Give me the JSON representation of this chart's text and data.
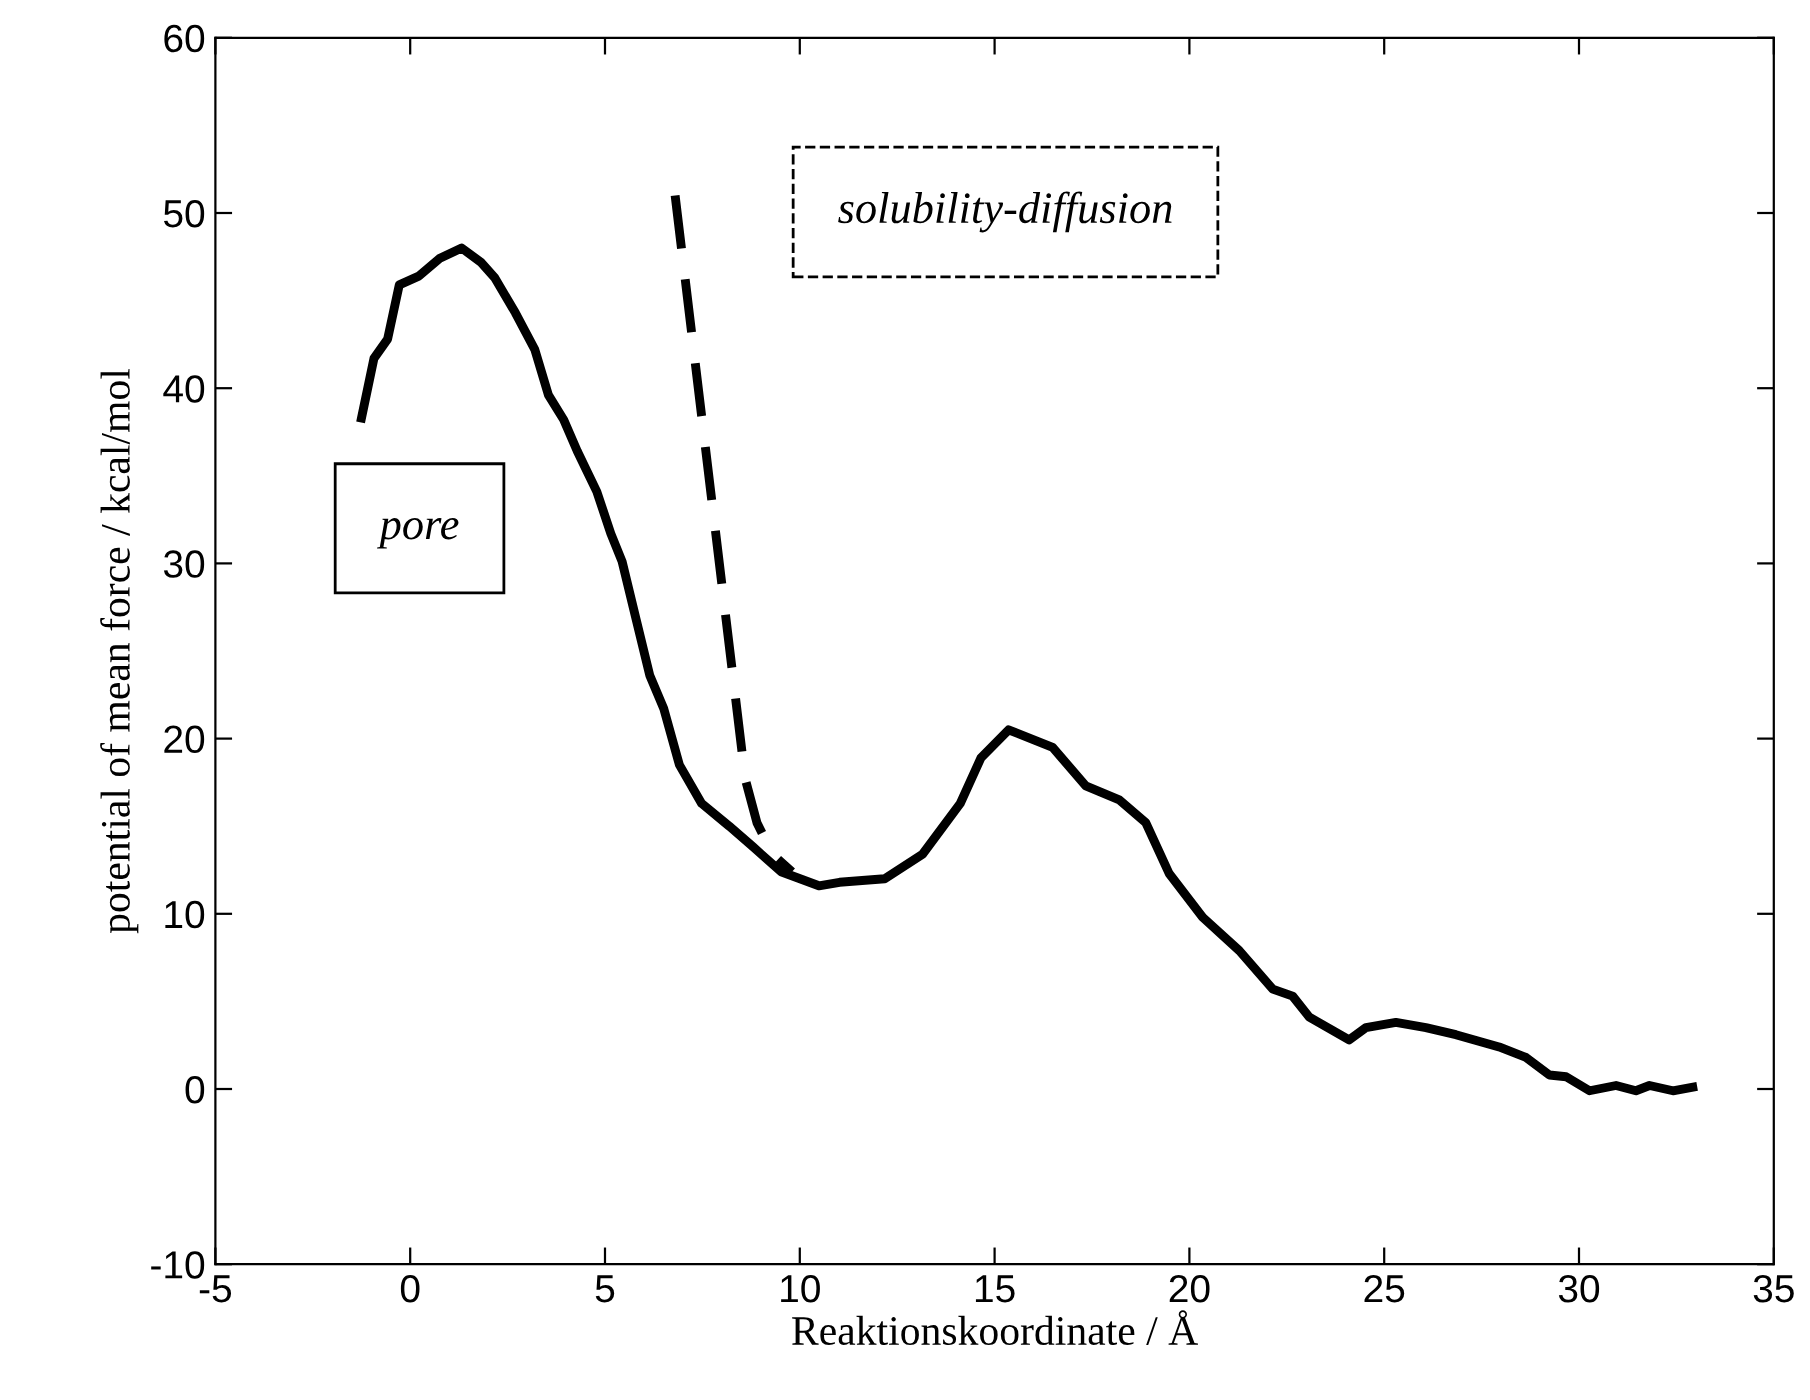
{
  "chart_data": {
    "type": "line",
    "xlabel": "Reaktionskoordinate / Å",
    "ylabel": "potential of mean force / kcal/mol",
    "xlim": [
      -5,
      35
    ],
    "xticks": [
      -5,
      0,
      5,
      10,
      15,
      20,
      25,
      30,
      35
    ],
    "ylim": [
      -10,
      60
    ],
    "yticks": [
      -10,
      0,
      10,
      20,
      30,
      40,
      50,
      60
    ],
    "grid": false,
    "legend": false,
    "annotations": [
      "pore",
      "solubility-diffusion"
    ],
    "series": [
      {
        "color": "#000000",
        "line_style": "solid",
        "x": [
          -1.25,
          -0.93,
          -0.58,
          -0.28,
          0.22,
          0.75,
          1.32,
          1.81,
          2.17,
          2.7,
          3.2,
          3.55,
          3.94,
          4.29,
          4.79,
          5.15,
          5.44,
          5.8,
          6.15,
          6.51,
          6.91,
          7.48,
          8.19,
          8.81,
          9.52,
          10.49,
          11.02,
          12.18,
          13.15,
          14.12,
          14.65,
          15.36,
          16.49,
          17.34,
          18.2,
          18.88,
          19.48,
          20.34,
          21.28,
          22.14,
          22.65,
          23.08,
          24.1,
          24.53,
          25.3,
          26.07,
          26.84,
          27.95,
          28.64,
          29.24,
          29.67,
          30.27,
          30.95,
          31.46,
          31.81,
          32.41,
          32.92
        ],
        "values": [
          38.3,
          41.7,
          42.8,
          45.9,
          46.4,
          47.4,
          48.0,
          47.2,
          46.3,
          44.3,
          42.2,
          39.6,
          38.2,
          36.4,
          34.1,
          31.7,
          30.1,
          26.8,
          23.6,
          21.7,
          18.5,
          16.3,
          15.0,
          13.8,
          12.4,
          11.6,
          11.8,
          12.0,
          13.4,
          16.3,
          18.9,
          20.5,
          19.5,
          17.3,
          16.5,
          15.2,
          12.3,
          9.8,
          7.9,
          5.7,
          5.3,
          4.1,
          2.8,
          3.5,
          3.8,
          3.5,
          3.1,
          2.4,
          1.8,
          0.8,
          0.7,
          -0.1,
          0.2,
          -0.1,
          0.2,
          -0.1,
          0.1
        ]
      },
      {
        "color": "#000000",
        "line_style": "dashed",
        "x": [
          6.8,
          8.6,
          8.9,
          9.3,
          9.8
        ],
        "values": [
          51.0,
          17.7,
          15.2,
          13.4,
          12.4
        ]
      }
    ]
  }
}
